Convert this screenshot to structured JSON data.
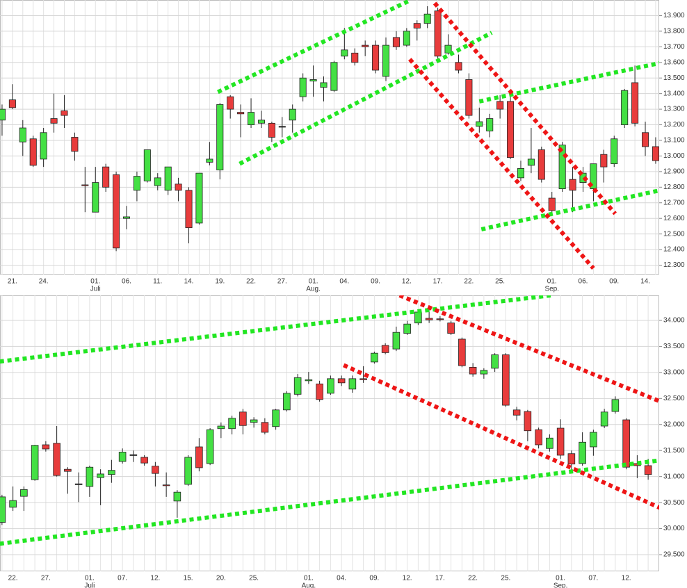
{
  "chart_data": [
    {
      "type": "candlestick",
      "categories": [
        null,
        "21.",
        null,
        null,
        "24.",
        null,
        null,
        null,
        null,
        "01.",
        null,
        null,
        "06.",
        null,
        null,
        "11.",
        null,
        null,
        "14.",
        null,
        null,
        "19.",
        null,
        null,
        "22.",
        null,
        null,
        "27.",
        null,
        null,
        "01.",
        null,
        null,
        "04.",
        null,
        null,
        "09.",
        null,
        null,
        "12.",
        null,
        null,
        "17.",
        null,
        null,
        "22.",
        null,
        null,
        "25.",
        null,
        null,
        null,
        null,
        "01.",
        null,
        null,
        "06.",
        null,
        null,
        "09.",
        null,
        null,
        "14.",
        null
      ],
      "months": [
        null,
        null,
        null,
        null,
        null,
        null,
        null,
        null,
        null,
        "Juli",
        null,
        null,
        null,
        null,
        null,
        null,
        null,
        null,
        null,
        null,
        null,
        null,
        null,
        null,
        null,
        null,
        null,
        null,
        null,
        null,
        "Aug.",
        null,
        null,
        null,
        null,
        null,
        null,
        null,
        null,
        null,
        null,
        null,
        null,
        null,
        null,
        null,
        null,
        null,
        null,
        null,
        null,
        null,
        null,
        "Sep.",
        null,
        null,
        null,
        null,
        null,
        null,
        null,
        null,
        null,
        null
      ],
      "open": [
        13.23,
        13.36,
        13.09,
        13.11,
        12.98,
        13.24,
        13.29,
        13.12,
        12.815,
        12.64,
        12.93,
        12.88,
        12.6,
        12.78,
        12.84,
        12.81,
        12.78,
        12.82,
        12.78,
        12.57,
        12.96,
        12.91,
        13.38,
        13.28,
        13.2,
        13.21,
        13.21,
        13.19,
        13.23,
        13.38,
        13.48,
        13.44,
        13.42,
        13.64,
        13.66,
        13.71,
        13.71,
        13.51,
        13.76,
        13.71,
        13.85,
        13.85,
        13.93,
        13.66,
        13.6,
        13.49,
        13.19,
        13.16,
        13.35,
        13.35,
        12.86,
        12.94,
        13.04,
        12.73,
        12.79,
        12.85,
        12.83,
        12.79,
        13.01,
        12.95,
        13.2,
        13.47,
        13.15,
        13.06
      ],
      "high": [
        13.33,
        13.46,
        13.23,
        13.13,
        13.18,
        13.4,
        13.39,
        13.15,
        12.93,
        12.93,
        12.95,
        12.9,
        12.68,
        12.9,
        13.04,
        12.89,
        12.93,
        12.86,
        12.8,
        12.89,
        13.09,
        13.34,
        13.39,
        13.33,
        13.37,
        13.29,
        13.22,
        13.25,
        13.33,
        13.53,
        13.58,
        13.51,
        13.61,
        13.82,
        13.69,
        13.74,
        13.74,
        13.76,
        13.8,
        13.82,
        13.87,
        13.96,
        13.95,
        13.78,
        13.65,
        13.53,
        13.31,
        13.27,
        13.39,
        13.38,
        12.97,
        13.18,
        13.06,
        12.77,
        13.09,
        12.93,
        12.93,
        12.95,
        13.04,
        13.13,
        13.43,
        13.58,
        13.22,
        13.12
      ],
      "low": [
        13.13,
        13.3,
        13.0,
        12.93,
        12.93,
        13.15,
        13.18,
        12.97,
        12.64,
        12.64,
        12.77,
        12.39,
        12.53,
        12.71,
        12.83,
        12.78,
        12.75,
        12.71,
        12.44,
        12.56,
        12.94,
        12.85,
        13.24,
        13.12,
        13.18,
        13.18,
        13.09,
        13.12,
        13.15,
        13.35,
        13.38,
        13.35,
        13.41,
        13.62,
        13.58,
        13.64,
        13.53,
        13.48,
        13.68,
        13.7,
        13.74,
        13.82,
        13.61,
        13.65,
        13.53,
        13.24,
        13.15,
        13.12,
        13.24,
        12.98,
        12.84,
        12.89,
        12.83,
        12.62,
        12.77,
        12.64,
        12.77,
        12.71,
        12.83,
        12.93,
        13.18,
        13.19,
        13.0,
        12.95
      ],
      "close": [
        13.3,
        13.31,
        13.18,
        12.94,
        13.15,
        13.21,
        13.26,
        13.03,
        12.81,
        12.83,
        12.8,
        12.41,
        12.61,
        12.87,
        13.04,
        12.86,
        12.93,
        12.78,
        12.54,
        12.89,
        12.98,
        13.33,
        13.3,
        13.27,
        13.28,
        13.23,
        13.12,
        13.19,
        13.3,
        13.5,
        13.49,
        13.47,
        13.6,
        13.68,
        13.6,
        13.7,
        13.55,
        13.71,
        13.7,
        13.8,
        13.82,
        13.91,
        13.64,
        13.71,
        13.55,
        13.26,
        13.22,
        13.24,
        13.3,
        12.99,
        12.92,
        12.98,
        12.85,
        12.65,
        13.07,
        12.78,
        12.89,
        12.95,
        12.93,
        13.11,
        13.42,
        13.21,
        13.06,
        12.97
      ],
      "up_color": "#44e044",
      "down_color": "#e83c3c",
      "ylim": [
        12.24,
        14.0
      ],
      "yticks": [
        {
          "value": 12.3,
          "label": "12.300"
        },
        {
          "value": 12.4,
          "label": "12.400"
        },
        {
          "value": 12.5,
          "label": "12.500"
        },
        {
          "value": 12.6,
          "label": "12.600"
        },
        {
          "value": 12.7,
          "label": "12.700"
        },
        {
          "value": 12.8,
          "label": "12.800"
        },
        {
          "value": 12.9,
          "label": "12.900"
        },
        {
          "value": 13.0,
          "label": "13.000"
        },
        {
          "value": 13.1,
          "label": "13.100"
        },
        {
          "value": 13.2,
          "label": "13.200"
        },
        {
          "value": 13.3,
          "label": "13.300"
        },
        {
          "value": 13.4,
          "label": "13.400"
        },
        {
          "value": 13.5,
          "label": "13.500"
        },
        {
          "value": 13.6,
          "label": "13.600"
        },
        {
          "value": 13.7,
          "label": "13.700"
        },
        {
          "value": 13.8,
          "label": "13.800"
        },
        {
          "value": 13.9,
          "label": "13.900"
        }
      ],
      "grid": true,
      "trendlines": [
        {
          "color": "#22e622",
          "from": [
            20.8,
            13.41
          ],
          "to": [
            39.4,
            14.0
          ]
        },
        {
          "color": "#22e622",
          "from": [
            22.9,
            12.95
          ],
          "to": [
            47.2,
            13.79
          ]
        },
        {
          "color": "#22e622",
          "from": [
            46.0,
            13.35
          ],
          "to": [
            65.1,
            13.62
          ]
        },
        {
          "color": "#22e622",
          "from": [
            46.2,
            12.53
          ],
          "to": [
            65.5,
            12.81
          ]
        },
        {
          "color": "#ee1515",
          "from": [
            41.7,
            13.98
          ],
          "to": [
            59.1,
            12.63
          ]
        },
        {
          "color": "#ee1515",
          "from": [
            39.3,
            13.62
          ],
          "to": [
            57.0,
            12.28
          ]
        }
      ]
    },
    {
      "type": "candlestick",
      "categories": [
        null,
        "22.",
        null,
        null,
        "27.",
        null,
        null,
        null,
        "01.",
        null,
        null,
        "07.",
        null,
        null,
        "12.",
        null,
        null,
        "15.",
        null,
        null,
        "20.",
        null,
        null,
        "25.",
        null,
        null,
        null,
        null,
        "01.",
        null,
        null,
        "04.",
        null,
        null,
        "09.",
        null,
        null,
        "12.",
        null,
        null,
        "17.",
        null,
        null,
        "22.",
        null,
        null,
        "25.",
        null,
        null,
        null,
        null,
        "01.",
        null,
        null,
        "07.",
        null,
        null,
        "12.",
        null,
        null
      ],
      "months": [
        null,
        null,
        null,
        null,
        null,
        null,
        null,
        null,
        "Juli",
        null,
        null,
        null,
        null,
        null,
        null,
        null,
        null,
        null,
        null,
        null,
        null,
        null,
        null,
        null,
        null,
        null,
        null,
        null,
        "Aug.",
        null,
        null,
        null,
        null,
        null,
        null,
        null,
        null,
        null,
        null,
        null,
        null,
        null,
        null,
        null,
        null,
        null,
        null,
        null,
        null,
        null,
        null,
        "Sep.",
        null,
        null,
        null,
        null,
        null,
        null,
        null,
        null
      ],
      "open": [
        30.12,
        30.41,
        30.62,
        30.94,
        31.61,
        31.64,
        31.14,
        30.86,
        30.81,
        30.98,
        31.04,
        31.29,
        31.42,
        31.37,
        31.2,
        30.84,
        30.53,
        30.85,
        31.57,
        31.25,
        31.92,
        31.92,
        32.24,
        32.04,
        32.04,
        31.96,
        32.28,
        32.58,
        32.84,
        32.78,
        32.6,
        32.88,
        32.68,
        32.88,
        33.2,
        33.52,
        33.45,
        33.75,
        33.95,
        34.04,
        34.03,
        33.95,
        33.64,
        33.1,
        32.97,
        33.08,
        33.34,
        32.28,
        32.25,
        31.9,
        31.54,
        31.93,
        31.44,
        31.25,
        31.57,
        31.97,
        32.25,
        32.09,
        31.25,
        31.21
      ],
      "high": [
        30.65,
        30.81,
        30.81,
        31.61,
        31.68,
        31.97,
        31.18,
        31.08,
        31.21,
        31.14,
        31.32,
        31.54,
        31.5,
        31.41,
        31.28,
        31.08,
        30.74,
        31.41,
        31.74,
        31.93,
        32.04,
        32.17,
        32.3,
        32.14,
        32.12,
        32.3,
        32.64,
        32.97,
        33.01,
        32.84,
        32.94,
        32.94,
        32.94,
        33.12,
        33.4,
        33.56,
        33.88,
        33.99,
        34.21,
        34.28,
        34.08,
        33.99,
        33.67,
        33.18,
        33.08,
        33.37,
        33.37,
        32.34,
        32.28,
        31.94,
        31.81,
        32.1,
        31.5,
        31.85,
        31.9,
        32.3,
        32.54,
        32.12,
        31.41,
        31.34
      ],
      "low": [
        30.07,
        30.34,
        30.34,
        30.92,
        31.48,
        31.0,
        30.67,
        30.51,
        30.61,
        30.45,
        30.88,
        31.25,
        31.28,
        31.21,
        30.81,
        30.61,
        30.21,
        30.82,
        31.1,
        31.22,
        31.74,
        31.81,
        31.81,
        31.94,
        31.81,
        31.9,
        32.25,
        32.54,
        32.78,
        32.44,
        32.57,
        32.74,
        32.61,
        32.8,
        33.17,
        33.35,
        33.41,
        33.72,
        33.91,
        33.95,
        33.98,
        33.72,
        33.1,
        32.92,
        32.88,
        33.01,
        32.34,
        32.08,
        31.68,
        31.54,
        31.48,
        31.34,
        31.08,
        31.21,
        31.4,
        31.93,
        32.21,
        31.14,
        30.97,
        30.94
      ],
      "close": [
        30.61,
        30.54,
        30.75,
        31.6,
        31.53,
        31.02,
        31.1,
        30.86,
        31.18,
        31.05,
        31.12,
        31.47,
        31.42,
        31.26,
        31.06,
        30.83,
        30.7,
        31.37,
        31.17,
        31.9,
        31.97,
        32.12,
        31.98,
        32.09,
        31.85,
        32.28,
        32.6,
        32.9,
        32.86,
        32.48,
        32.88,
        32.8,
        32.88,
        32.86,
        33.37,
        33.38,
        33.77,
        33.93,
        34.16,
        34.01,
        34.02,
        33.75,
        33.13,
        32.97,
        33.04,
        33.34,
        32.37,
        32.18,
        31.88,
        31.61,
        31.74,
        31.41,
        31.24,
        31.66,
        31.85,
        32.24,
        32.48,
        31.18,
        31.21,
        31.04
      ],
      "up_color": "#44e044",
      "down_color": "#e83c3c",
      "ylim": [
        29.18,
        34.48
      ],
      "yticks": [
        {
          "value": 29.5,
          "label": "29.500"
        },
        {
          "value": 30.0,
          "label": "30.000"
        },
        {
          "value": 30.5,
          "label": "30.500"
        },
        {
          "value": 31.0,
          "label": "31.000"
        },
        {
          "value": 31.5,
          "label": "31.500"
        },
        {
          "value": 32.0,
          "label": "32.000"
        },
        {
          "value": 32.5,
          "label": "32.500"
        },
        {
          "value": 33.0,
          "label": "33.000"
        },
        {
          "value": 33.5,
          "label": "33.500"
        },
        {
          "value": 34.0,
          "label": "34.000"
        }
      ],
      "grid": true,
      "trendlines": [
        {
          "color": "#22e622",
          "from": [
            -0.2,
            33.21
          ],
          "to": [
            50.1,
            34.48
          ]
        },
        {
          "color": "#22e622",
          "from": [
            -0.2,
            29.71
          ],
          "to": [
            60.4,
            31.32
          ]
        },
        {
          "color": "#ee1515",
          "from": [
            36.3,
            34.48
          ],
          "to": [
            62.0,
            32.28
          ]
        },
        {
          "color": "#ee1515",
          "from": [
            31.2,
            33.14
          ],
          "to": [
            60.7,
            30.34
          ]
        }
      ]
    }
  ]
}
